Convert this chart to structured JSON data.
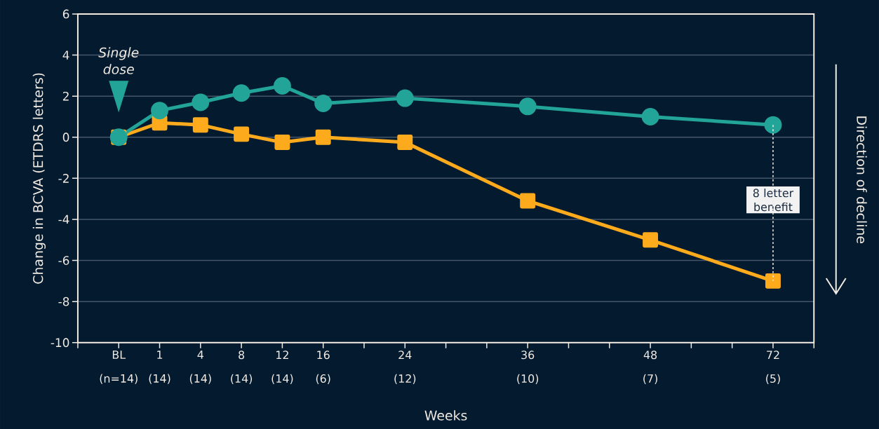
{
  "chart_data": {
    "type": "line",
    "xlabel": "Weeks",
    "ylabel": "Change in BCVA (ETDRS letters)",
    "categories": [
      "BL (n=14)",
      "1 (14)",
      "4 (14)",
      "8 (14)",
      "12 (14)",
      "16 (6)",
      null,
      "24 (12)",
      null,
      null,
      "36 (10)",
      null,
      null,
      "48 (7)",
      null,
      null,
      "72 (5)"
    ],
    "series": [
      {
        "color": "#fdaa1c",
        "marker": "square",
        "values": [
          0,
          0.7,
          0.6,
          0.15,
          -0.25,
          0,
          null,
          -0.25,
          null,
          null,
          -3.1,
          null,
          null,
          -5.0,
          null,
          null,
          -7.0
        ]
      },
      {
        "color": "#22a498",
        "marker": "circle",
        "values": [
          0,
          1.3,
          1.7,
          2.15,
          2.5,
          1.65,
          null,
          1.9,
          null,
          null,
          1.5,
          null,
          null,
          1.0,
          null,
          null,
          0.6
        ]
      }
    ],
    "ylim": [
      -10,
      6
    ],
    "yticks": [
      -10,
      -8,
      -6,
      -4,
      -2,
      0,
      2,
      4,
      6
    ],
    "grid": "y",
    "annotations": [
      "Single dose",
      "8 letter benefit",
      "Direction of decline"
    ]
  }
}
